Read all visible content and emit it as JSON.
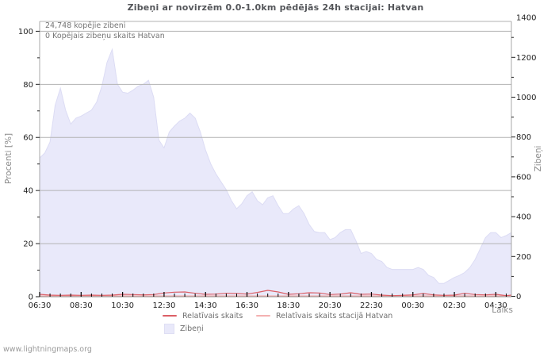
{
  "footer": "www.lightningmaps.org",
  "colors": {
    "area": "#e9e9fa",
    "area_edge": "#dcdcf4",
    "relative_line": "#dc5f66",
    "station_line": "#f4b1b1",
    "grid": "#b3b3b3",
    "frame": "#a8a8a8",
    "tick": "#000000",
    "tick_label": "#1f1f1f"
  },
  "chart_data": {
    "type": "area",
    "title": "Zibeņi ar novirzēm 0.0-1.0km pēdējās 24h stacijai: Hatvan",
    "annotations": [
      "24,748 kopējie zibeni",
      "0 Kopējais zibeņu skaits Hatvan"
    ],
    "grid": true,
    "legend_position": "bottom",
    "axes": {
      "x": {
        "label": "Laiks",
        "tick_labels": [
          "06:30",
          "08:30",
          "10:30",
          "12:30",
          "14:30",
          "16:30",
          "18:30",
          "20:30",
          "22:30",
          "00:30",
          "02:30",
          "04:30"
        ],
        "tick_interval_hours": 2,
        "minor_interval_hours": 0.5,
        "span_hours": 22.75
      },
      "left": {
        "label": "Procenti  [%]",
        "min": 0,
        "max": 100,
        "major": 20,
        "minor": 10
      },
      "right": {
        "label": "Zibeņi",
        "min": 0,
        "max": 1400,
        "major": 200,
        "minor": 100
      }
    },
    "legend": [
      {
        "label": "Relatīvais skaits",
        "swatch": "line",
        "color": "#dc5f66"
      },
      {
        "label": "Relatīvais skaits stacijā Hatvan",
        "swatch": "line",
        "color": "#f4b1b1"
      },
      {
        "label": "Zibeņi",
        "swatch": "area",
        "color": "#e9e9fa"
      }
    ],
    "series": {
      "area": {
        "name": "Zibeņi",
        "axis": "right",
        "start": "06:30",
        "step_minutes": 15,
        "values": [
          695,
          720,
          775,
          960,
          1045,
          935,
          865,
          895,
          905,
          920,
          935,
          975,
          1055,
          1175,
          1240,
          1065,
          1025,
          1020,
          1035,
          1055,
          1065,
          1085,
          1000,
          785,
          745,
          825,
          855,
          880,
          895,
          920,
          895,
          825,
          735,
          665,
          615,
          575,
          535,
          480,
          440,
          465,
          505,
          525,
          480,
          460,
          495,
          505,
          455,
          415,
          415,
          440,
          455,
          415,
          360,
          325,
          320,
          320,
          285,
          295,
          320,
          335,
          335,
          280,
          215,
          225,
          215,
          185,
          175,
          145,
          135,
          135,
          135,
          135,
          135,
          145,
          135,
          105,
          95,
          65,
          65,
          80,
          95,
          105,
          120,
          145,
          185,
          240,
          295,
          320,
          320,
          295,
          305,
          320
        ]
      },
      "relative": {
        "name": "Relatīvais skaits",
        "axis": "left",
        "start": "06:30",
        "step_minutes": 30,
        "values": [
          0.9,
          0.6,
          0.5,
          0.6,
          0.5,
          0.6,
          0.5,
          0.6,
          0.9,
          0.8,
          0.7,
          0.8,
          1.4,
          1.7,
          1.8,
          1.3,
          0.9,
          1.0,
          1.3,
          1.2,
          1.0,
          1.6,
          2.4,
          1.8,
          0.9,
          1.1,
          1.5,
          1.4,
          0.8,
          1.0,
          1.5,
          0.9,
          1.0,
          0.6,
          0.4,
          0.5,
          0.7,
          1.2,
          0.7,
          0.5,
          0.6,
          1.3,
          0.8,
          0.7,
          0.9,
          0.4,
          0.6
        ]
      },
      "station": {
        "name": "Relatīvais skaits stacijā Hatvan",
        "axis": "left",
        "constant_value": 0
      }
    }
  }
}
